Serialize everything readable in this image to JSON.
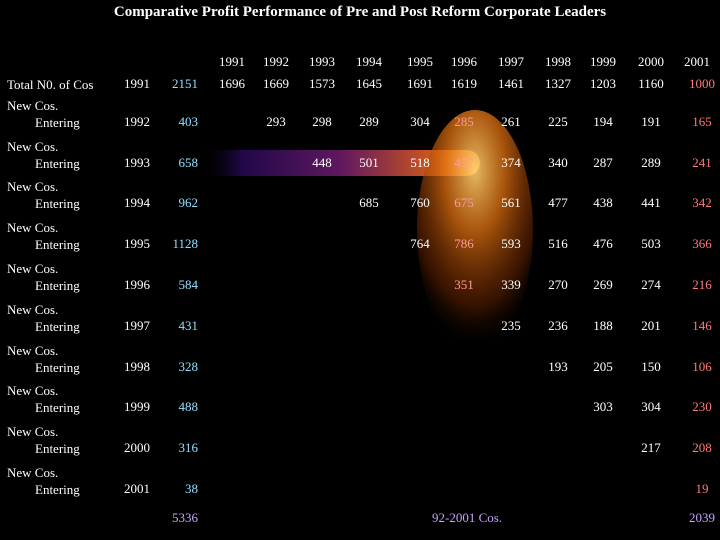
{
  "title": "Comparative Profit Performance of Pre and Post Reform Corporate Leaders",
  "years": [
    "1991",
    "1992",
    "1993",
    "1994",
    "1995",
    "1996",
    "1997",
    "1998",
    "1999",
    "2000",
    "2001"
  ],
  "rows": [
    {
      "label_line1": "Total N0. of Cos",
      "label_line2": "",
      "entry_year": "1991",
      "count": "2151",
      "values": [
        "1696",
        "1669",
        "1573",
        "1645",
        "1691",
        "1619",
        "1461",
        "1327",
        "1203",
        "1160",
        "1000"
      ]
    },
    {
      "label_line1": "New Cos.",
      "label_line2": "Entering",
      "entry_year": "1992",
      "count": "403",
      "values": [
        "",
        "293",
        "298",
        "289",
        "304",
        "285",
        "261",
        "225",
        "194",
        "191",
        "165"
      ]
    },
    {
      "label_line1": "New Cos.",
      "label_line2": "Entering",
      "entry_year": "1993",
      "count": "658",
      "values": [
        "",
        "",
        "448",
        "501",
        "518",
        "457",
        "374",
        "340",
        "287",
        "289",
        "241"
      ]
    },
    {
      "label_line1": "New Cos.",
      "label_line2": "Entering",
      "entry_year": "1994",
      "count": "962",
      "values": [
        "",
        "",
        "",
        "685",
        "760",
        "675",
        "561",
        "477",
        "438",
        "441",
        "342"
      ]
    },
    {
      "label_line1": "New Cos.",
      "label_line2": "Entering",
      "entry_year": "1995",
      "count": "1128",
      "values": [
        "",
        "",
        "",
        "",
        "764",
        "786",
        "593",
        "516",
        "476",
        "503",
        "366"
      ]
    },
    {
      "label_line1": "New Cos.",
      "label_line2": "Entering",
      "entry_year": "1996",
      "count": "584",
      "values": [
        "",
        "",
        "",
        "",
        "",
        "351",
        "339",
        "270",
        "269",
        "274",
        "216"
      ]
    },
    {
      "label_line1": "New Cos.",
      "label_line2": "Entering",
      "entry_year": "1997",
      "count": "431",
      "values": [
        "",
        "",
        "",
        "",
        "",
        "",
        "235",
        "236",
        "188",
        "201",
        "146"
      ]
    },
    {
      "label_line1": "New Cos.",
      "label_line2": "Entering",
      "entry_year": "1998",
      "count": "328",
      "values": [
        "",
        "",
        "",
        "",
        "",
        "",
        "",
        "193",
        "205",
        "150",
        "106"
      ]
    },
    {
      "label_line1": "New Cos.",
      "label_line2": "Entering",
      "entry_year": "1999",
      "count": "488",
      "values": [
        "",
        "",
        "",
        "",
        "",
        "",
        "",
        "",
        "303",
        "304",
        "230"
      ]
    },
    {
      "label_line1": "New Cos.",
      "label_line2": "Entering",
      "entry_year": "2000",
      "count": "316",
      "values": [
        "",
        "",
        "",
        "",
        "",
        "",
        "",
        "",
        "",
        "217",
        "208"
      ]
    },
    {
      "label_line1": "New Cos.",
      "label_line2": "Entering",
      "entry_year": "2001",
      "count": "38",
      "values": [
        "",
        "",
        "",
        "",
        "",
        "",
        "",
        "",
        "",
        "",
        "19"
      ]
    }
  ],
  "footer": {
    "count_total": "5336",
    "caption": "92-2001 Cos.",
    "final_total": "2039"
  },
  "colors": {
    "background": "#000000",
    "text": "#ffffff",
    "count": "#8fe0ff",
    "last_column": "#ff7a7a",
    "highlight_column": "#ff9a9a",
    "footer": "#c8a2ff",
    "glow": "#ff8a1a"
  }
}
